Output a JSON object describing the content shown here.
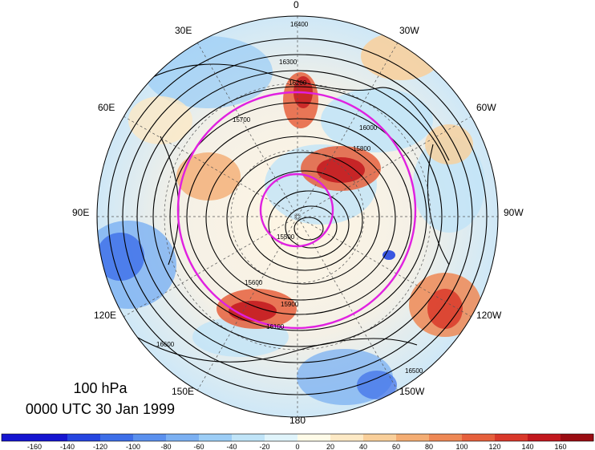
{
  "map": {
    "projection": "polar stereographic (north pole)",
    "level_label": "100 hPa",
    "time_label": "0000 UTC 30 Jan 1999",
    "longitude_labels": [
      "0",
      "30W",
      "60W",
      "90W",
      "120W",
      "150W",
      "180",
      "150E",
      "120E",
      "90E",
      "60E",
      "30E"
    ],
    "contour_labels": [
      "16400",
      "16300",
      "16200",
      "16100",
      "16000",
      "15900",
      "15800",
      "15700",
      "15600",
      "15500",
      "16500",
      "16600"
    ],
    "fill_field": "anomaly (shaded)",
    "contour_field": "geopotential height (m)",
    "overlay_circle_color": "#e020e0"
  },
  "colorbar": {
    "ticks": [
      "-160",
      "-140",
      "-120",
      "-100",
      "-80",
      "-60",
      "-40",
      "-20",
      "0",
      "20",
      "40",
      "60",
      "80",
      "100",
      "120",
      "140",
      "160"
    ],
    "colors": [
      "#1515d0",
      "#2545e0",
      "#3d6ee8",
      "#5a90ee",
      "#7bb0f2",
      "#9ccdf6",
      "#c0e4f8",
      "#e0f4fb",
      "#fffbe8",
      "#fde9c5",
      "#f9cf9a",
      "#f4ad73",
      "#ee8855",
      "#e6603c",
      "#d9382a",
      "#c2181e",
      "#9a0c12"
    ]
  }
}
